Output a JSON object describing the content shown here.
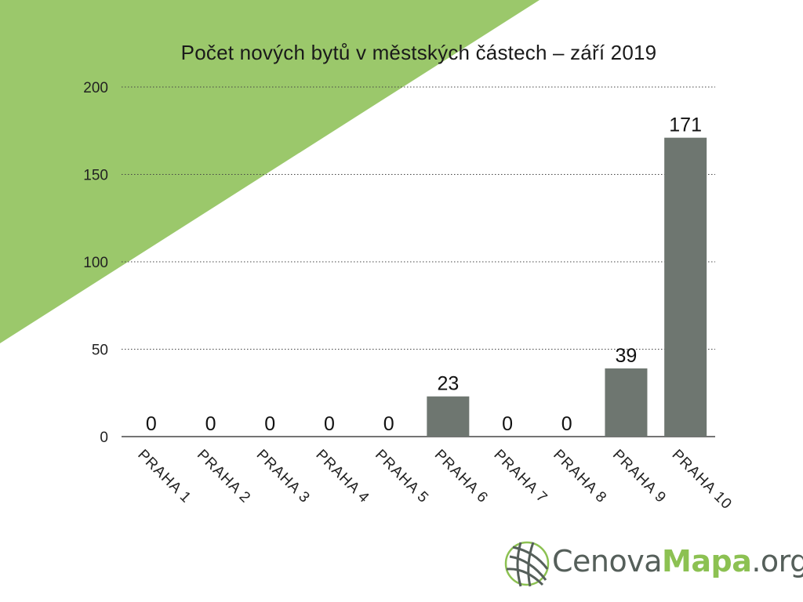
{
  "title": "Počet nových bytů v městských částech – září 2019",
  "colors": {
    "background_accent": "#9bc86b",
    "bar": "#6e7670",
    "grid": "#444444",
    "axis": "#222222",
    "logo_green": "#8cc152",
    "logo_gray": "#555f5a"
  },
  "chart_data": {
    "type": "bar",
    "categories": [
      "PRAHA 1",
      "PRAHA 2",
      "PRAHA 3",
      "PRAHA 4",
      "PRAHA 5",
      "PRAHA 6",
      "PRAHA 7",
      "PRAHA 8",
      "PRAHA 9",
      "PRAHA 10"
    ],
    "values": [
      0,
      0,
      0,
      0,
      0,
      23,
      0,
      0,
      39,
      171
    ],
    "data_labels": [
      "0",
      "0",
      "0",
      "0",
      "0",
      "23",
      "0",
      "0",
      "39",
      "171"
    ],
    "title": "Počet nových bytů v městských částech – září 2019",
    "xlabel": "",
    "ylabel": "",
    "ylim": [
      0,
      200
    ],
    "yticks": [
      0,
      50,
      100,
      150,
      200
    ],
    "grid": true,
    "grid_style": "dotted",
    "legend": "none",
    "x_tick_rotation": "45deg-down"
  },
  "logo": {
    "icon": "globe-grid-icon",
    "text_cenova": "Cenova",
    "text_mapa": "Mapa",
    "text_org": ".org"
  }
}
